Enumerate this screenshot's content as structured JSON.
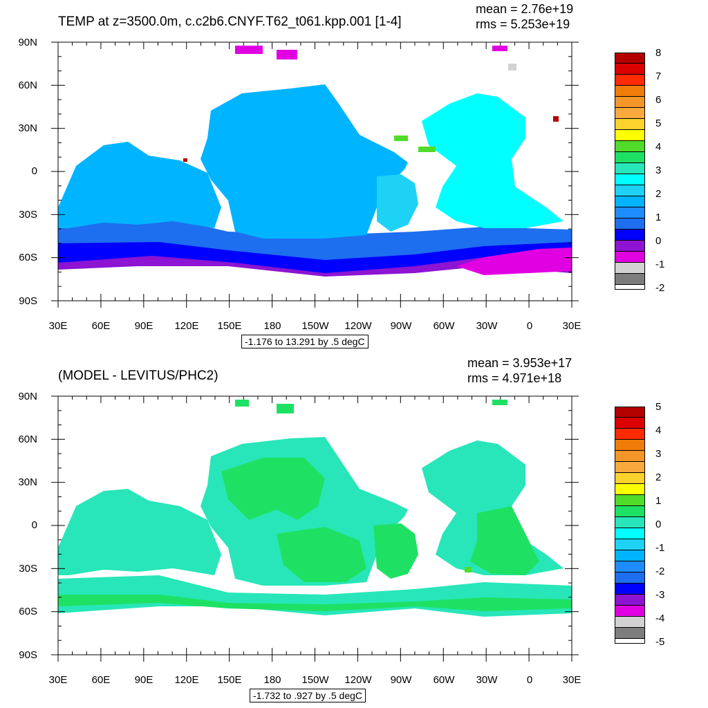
{
  "chart_data": [
    {
      "type": "heatmap",
      "title": "TEMP at z=3500.0m, c.c2b6.CNYF.T62_t061.kpp.001 [1-4]",
      "stats": {
        "mean": "mean = 2.76e+19",
        "rms": "rms = 5.253e+19"
      },
      "x_tick_labels": [
        "30E",
        "60E",
        "90E",
        "120E",
        "150E",
        "180",
        "150W",
        "120W",
        "90W",
        "60W",
        "30W",
        "0",
        "30E"
      ],
      "y_tick_labels": [
        "90N",
        "60N",
        "30N",
        "0",
        "30S",
        "60S",
        "90S"
      ],
      "xlim": [
        30,
        390
      ],
      "ylim": [
        -90,
        90
      ],
      "range_label": "-1.176 to 13.291 by .5 degC",
      "colorbar_labels": [
        "8",
        "7",
        "6",
        "5",
        "4",
        "3",
        "2",
        "1",
        "0",
        "-1",
        "-2"
      ],
      "colorbar_colors": [
        "#b40000",
        "#dc0000",
        "#ff2a00",
        "#f07d0a",
        "#f59628",
        "#faaa3c",
        "#fcd22d",
        "#ffff00",
        "#50dc28",
        "#1ee164",
        "#28e6b9",
        "#00ffff",
        "#1ed2f5",
        "#00b4ff",
        "#1e8cff",
        "#1e6ef0",
        "#0000ff",
        "#8c14d2",
        "#e100e1",
        "#d2d2d2",
        "#7d7d7d"
      ]
    },
    {
      "type": "heatmap",
      "title": "(MODEL - LEVITUS/PHC2)",
      "stats": {
        "mean": "mean = 3.953e+17",
        "rms": "rms = 4.971e+18"
      },
      "x_tick_labels": [
        "30E",
        "60E",
        "90E",
        "120E",
        "150E",
        "180",
        "150W",
        "120W",
        "90W",
        "60W",
        "30W",
        "0",
        "30E"
      ],
      "y_tick_labels": [
        "90N",
        "60N",
        "30N",
        "0",
        "30S",
        "60S",
        "90S"
      ],
      "xlim": [
        30,
        390
      ],
      "ylim": [
        -90,
        90
      ],
      "range_label": "-1.732 to .927 by .5 degC",
      "colorbar_labels": [
        "5",
        "4",
        "3",
        "2",
        "1",
        "0",
        "-1",
        "-2",
        "-3",
        "-4",
        "-5"
      ],
      "colorbar_colors": [
        "#b40000",
        "#dc0000",
        "#ff2a00",
        "#f07d0a",
        "#f59628",
        "#faaa3c",
        "#fcd22d",
        "#ffff00",
        "#50dc28",
        "#1ee164",
        "#28e6b9",
        "#00ffff",
        "#1ed2f5",
        "#00b4ff",
        "#1e8cff",
        "#1e6ef0",
        "#0000ff",
        "#8c14d2",
        "#e100e1",
        "#d2d2d2",
        "#7d7d7d"
      ]
    }
  ]
}
